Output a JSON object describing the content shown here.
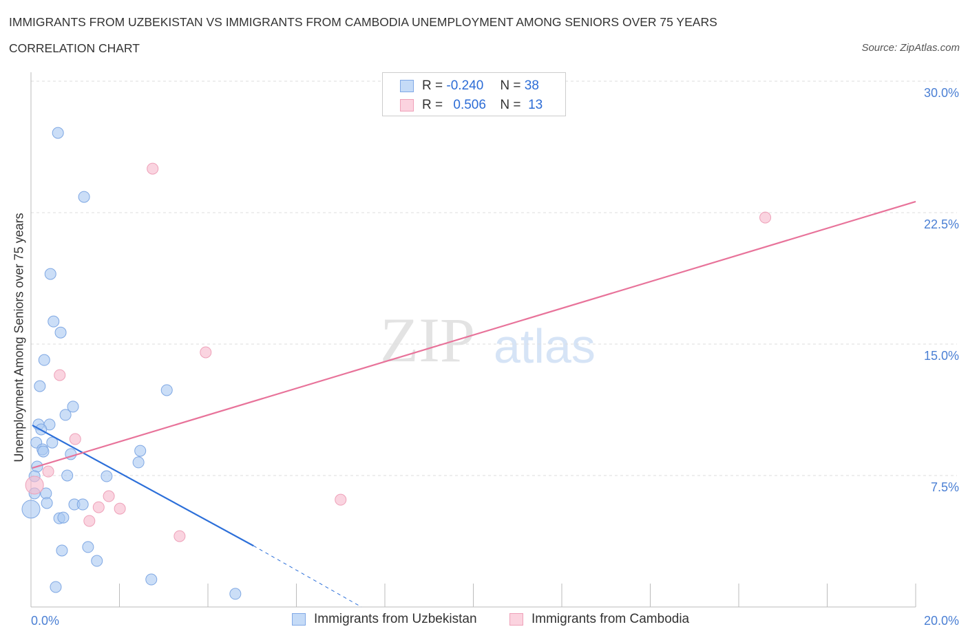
{
  "title": "IMMIGRANTS FROM UZBEKISTAN VS IMMIGRANTS FROM CAMBODIA UNEMPLOYMENT AMONG SENIORS OVER 75 YEARS",
  "subtitle": "CORRELATION CHART",
  "source": "Source: ZipAtlas.com",
  "watermark": "ZIPatlas",
  "legend": {
    "r_label": "R =",
    "n_label": "N =",
    "rows": [
      {
        "r": "-0.240",
        "n": "38"
      },
      {
        "r": "0.506",
        "n": "13"
      }
    ]
  },
  "colors": {
    "blue": "#a9c8f2",
    "blue_line": "#2c6fd9",
    "pink": "#f6b8cb",
    "pink_line": "#e8739a"
  },
  "chart_data": {
    "type": "scatter",
    "xlabel": "",
    "ylabel": "Unemployment Among Seniors over 75 years",
    "xlim": [
      0,
      20
    ],
    "ylim": [
      0,
      30
    ],
    "x_tick_labels": [
      "0.0%",
      "20.0%"
    ],
    "y_ticks": [
      7.5,
      15,
      22.5,
      30
    ],
    "y_tick_labels": [
      "7.5%",
      "15.0%",
      "22.5%",
      "30.0%"
    ],
    "series": [
      {
        "name": "Immigrants from Uzbekistan",
        "points": [
          [
            0.61,
            27.05
          ],
          [
            1.2,
            23.4
          ],
          [
            0.44,
            19.0
          ],
          [
            0.51,
            16.29
          ],
          [
            0.67,
            15.66
          ],
          [
            0.3,
            14.09
          ],
          [
            0.2,
            12.6
          ],
          [
            3.07,
            12.37
          ],
          [
            0.95,
            11.43
          ],
          [
            0.78,
            10.96
          ],
          [
            0.17,
            10.41
          ],
          [
            0.42,
            10.41
          ],
          [
            0.23,
            10.13
          ],
          [
            0.12,
            9.38
          ],
          [
            0.48,
            9.38
          ],
          [
            0.26,
            8.99
          ],
          [
            0.28,
            8.87
          ],
          [
            0.9,
            8.72
          ],
          [
            2.47,
            8.91
          ],
          [
            2.43,
            8.25
          ],
          [
            0.14,
            8.01
          ],
          [
            0.82,
            7.5
          ],
          [
            1.71,
            7.46
          ],
          [
            0.08,
            7.46
          ],
          [
            0.34,
            6.48
          ],
          [
            0.08,
            6.48
          ],
          [
            0.36,
            5.93
          ],
          [
            0.98,
            5.85
          ],
          [
            1.17,
            5.85
          ],
          [
            0.0,
            5.58
          ],
          [
            0.64,
            5.06
          ],
          [
            0.73,
            5.1
          ],
          [
            1.29,
            3.42
          ],
          [
            0.7,
            3.22
          ],
          [
            1.49,
            2.63
          ],
          [
            2.72,
            1.57
          ],
          [
            0.56,
            1.14
          ],
          [
            4.62,
            0.75
          ]
        ],
        "trend": {
          "solid": [
            [
              0.03,
              10.37
            ],
            [
              5.03,
              3.49
            ]
          ],
          "dashed": [
            [
              5.03,
              3.49
            ],
            [
              7.47,
              0
            ]
          ]
        }
      },
      {
        "name": "Immigrants from Cambodia",
        "points": [
          [
            2.75,
            25.01
          ],
          [
            16.6,
            22.22
          ],
          [
            3.95,
            14.53
          ],
          [
            0.65,
            13.23
          ],
          [
            1.0,
            9.58
          ],
          [
            0.39,
            7.73
          ],
          [
            0.08,
            6.95
          ],
          [
            1.76,
            6.32
          ],
          [
            1.53,
            5.69
          ],
          [
            2.01,
            5.61
          ],
          [
            1.32,
            4.91
          ],
          [
            3.36,
            4.04
          ],
          [
            7.0,
            6.12
          ]
        ],
        "trend": {
          "solid": [
            [
              0.03,
              7.93
            ],
            [
              20,
              23.13
            ]
          ]
        }
      }
    ]
  }
}
